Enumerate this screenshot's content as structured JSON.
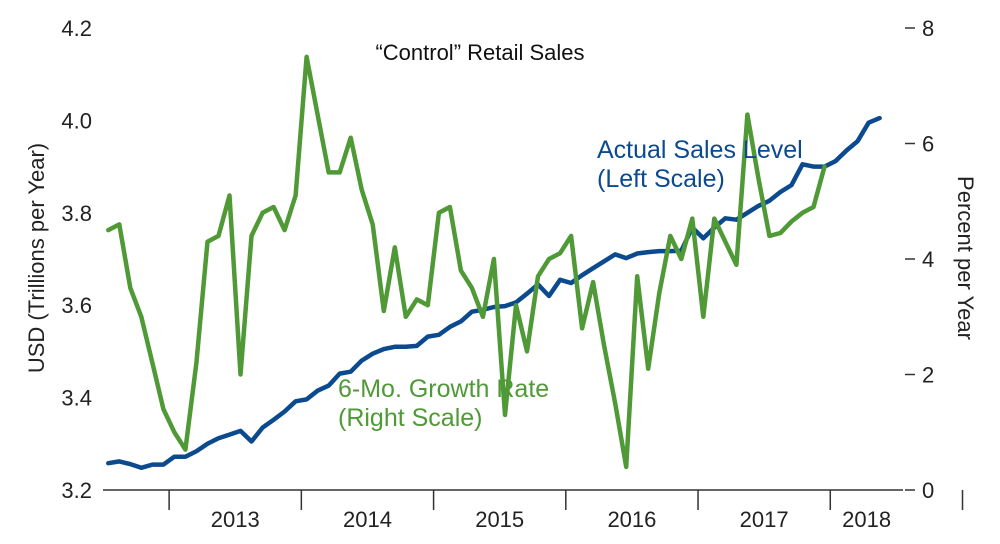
{
  "chart_data": {
    "type": "line",
    "title": "“Control” Retail Sales",
    "ylabel_left": "USD (Trillions per Year)",
    "ylabel_right": "Percent per Year",
    "ylim_left": [
      3.2,
      4.2
    ],
    "ylim_right": [
      0,
      8
    ],
    "yticks_left": [
      "3.2",
      "3.4",
      "3.6",
      "3.8",
      "4.0",
      "4.2"
    ],
    "yticks_right": [
      "0",
      "2",
      "4",
      "6",
      "8"
    ],
    "xlim": [
      2012.5,
      2018.55
    ],
    "x_tick_labels": [
      "2013",
      "2014",
      "2015",
      "2016",
      "2017",
      "2018"
    ],
    "grid": false,
    "colors": {
      "sales": "#0b4a8f",
      "growth": "#4f9a36"
    },
    "annotations": {
      "sales_line1": "Actual Sales Level",
      "sales_line2": "(Left Scale)",
      "growth_line1": "6-Mo. Growth Rate",
      "growth_line2": "(Right Scale)"
    },
    "series": [
      {
        "name": "Actual Sales Level (Left Scale)",
        "axis": "left",
        "x_start": 2012.54,
        "x_step": 0.08333,
        "values": [
          3.258,
          3.262,
          3.256,
          3.248,
          3.255,
          3.255,
          3.272,
          3.272,
          3.284,
          3.3,
          3.312,
          3.32,
          3.328,
          3.305,
          3.335,
          3.352,
          3.37,
          3.392,
          3.396,
          3.415,
          3.426,
          3.452,
          3.456,
          3.48,
          3.495,
          3.505,
          3.51,
          3.51,
          3.512,
          3.532,
          3.536,
          3.553,
          3.565,
          3.586,
          3.59,
          3.596,
          3.598,
          3.606,
          3.625,
          3.645,
          3.62,
          3.655,
          3.648,
          3.665,
          3.68,
          3.695,
          3.71,
          3.702,
          3.712,
          3.715,
          3.717,
          3.717,
          3.718,
          3.768,
          3.745,
          3.768,
          3.788,
          3.785,
          3.8,
          3.815,
          3.826,
          3.845,
          3.86,
          3.905,
          3.9,
          3.9,
          3.912,
          3.935,
          3.955,
          3.995,
          4.005
        ]
      },
      {
        "name": "6-Mo. Growth Rate (Right Scale)",
        "axis": "right",
        "x_start": 2012.54,
        "x_step": 0.08333,
        "values": [
          4.5,
          4.6,
          3.5,
          3.0,
          2.2,
          1.4,
          1.0,
          0.7,
          2.2,
          4.3,
          4.4,
          5.1,
          2.0,
          4.4,
          4.8,
          4.9,
          4.5,
          5.1,
          7.5,
          6.5,
          5.5,
          5.5,
          6.1,
          5.2,
          4.6,
          3.1,
          4.2,
          3.0,
          3.3,
          3.2,
          4.8,
          4.9,
          3.8,
          3.5,
          3.0,
          4.0,
          1.3,
          3.2,
          2.4,
          3.7,
          4.0,
          4.1,
          4.4,
          2.8,
          3.6,
          2.5,
          1.5,
          0.4,
          3.7,
          2.1,
          3.4,
          4.4,
          4.0,
          4.7,
          3.0,
          4.7,
          4.3,
          3.9,
          6.5,
          5.4,
          4.4,
          4.45,
          4.65,
          4.8,
          4.9,
          5.6
        ]
      }
    ]
  }
}
